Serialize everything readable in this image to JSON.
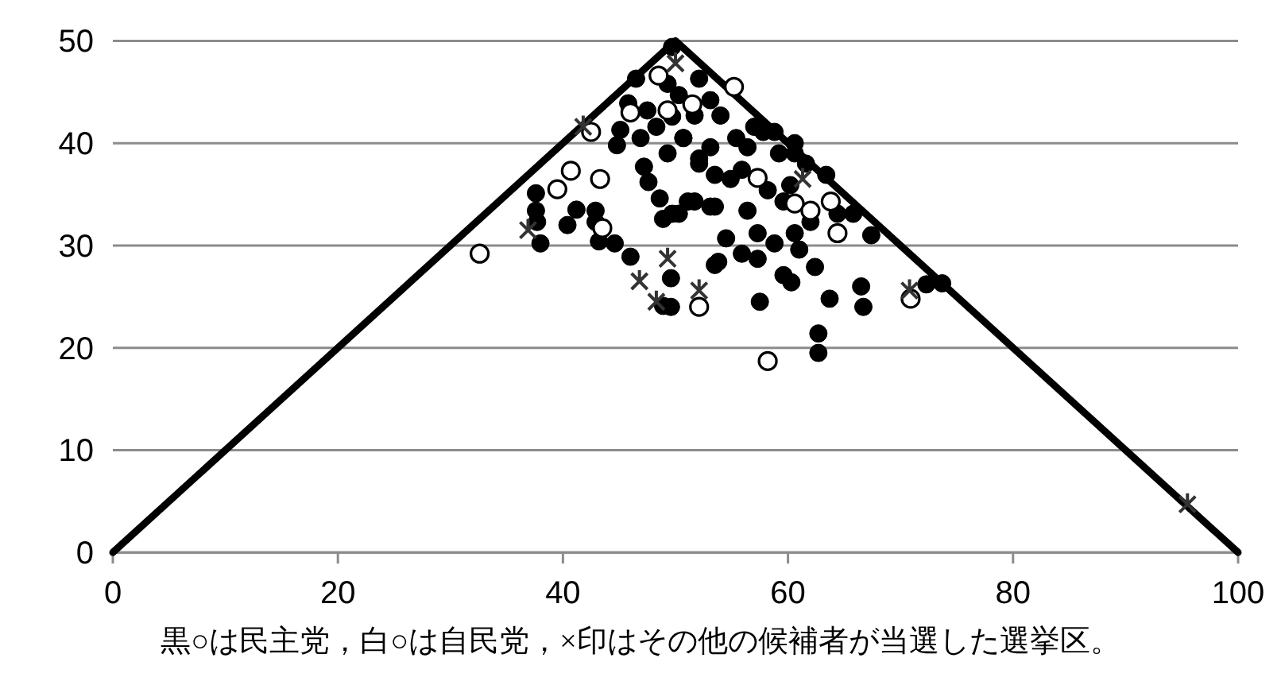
{
  "chart_data": {
    "type": "scatter",
    "xlim": [
      0,
      100
    ],
    "ylim": [
      0,
      50
    ],
    "xticks": [
      0,
      20,
      40,
      60,
      80,
      100
    ],
    "yticks": [
      0,
      10,
      20,
      30,
      40,
      50
    ],
    "grid": "y",
    "annotations": [
      "黒○は民主党，白○は自民党，×印はその他の候補者が当選した選挙区。"
    ],
    "series": [
      {
        "type": "line",
        "marker": "none",
        "color": "#000000",
        "x": [
          0,
          50,
          100
        ],
        "values": [
          0,
          50,
          0
        ]
      },
      {
        "marker": "circle",
        "color": "#000000",
        "x": [
          37.6,
          37.6,
          37.7,
          38,
          40.4,
          41.2,
          42.9,
          42.9,
          43.2,
          44.6,
          46,
          49.6,
          48.9,
          44.8,
          45.1,
          45.8,
          46.5,
          47.5,
          46.9,
          47.2,
          47.6,
          48.6,
          48.9,
          50.3,
          51.7,
          53.1,
          49.7,
          49.3,
          48.3,
          49.3,
          50.7,
          51.7,
          52.1,
          53.1,
          53.5,
          52.1,
          53.1,
          54,
          55.4,
          56.4,
          57.8,
          58.8,
          59.2,
          50.7,
          52.1,
          53.5,
          54.9,
          55.9,
          58.2,
          59.6,
          51.1,
          49.7,
          53.5,
          56.4,
          57.3,
          54.5,
          55.9,
          57.3,
          58.8,
          60.6,
          61,
          62.4,
          53.8,
          59.6,
          60.3,
          63.7,
          66.5,
          66.7,
          57.5,
          49.6,
          62.7,
          62.7,
          64.4,
          65.8,
          67.4,
          72.3,
          62,
          63.4,
          61.6,
          60.6,
          60.2,
          50.3,
          49.7,
          73.7,
          57,
          60.6
        ],
        "values": [
          35.1,
          33.4,
          32.3,
          30.2,
          32,
          33.5,
          33.4,
          32.3,
          30.4,
          30.2,
          28.9,
          26.8,
          24.1,
          39.8,
          41.3,
          43.9,
          46.3,
          43.2,
          40.5,
          37.7,
          36.2,
          34.6,
          32.6,
          33.1,
          34.3,
          33.8,
          49.4,
          45.8,
          41.6,
          39,
          40.5,
          42.7,
          38,
          39.6,
          28.1,
          46.3,
          44.2,
          42.7,
          40.5,
          39.6,
          41.1,
          41.1,
          39,
          40.5,
          38.5,
          36.9,
          36.5,
          37.4,
          35.4,
          34.3,
          34.3,
          33.1,
          33.8,
          33.4,
          31.2,
          30.7,
          29.2,
          28.7,
          30.2,
          31.2,
          29.6,
          27.9,
          28.4,
          27.1,
          26.4,
          24.8,
          26,
          24,
          24.5,
          24,
          21.4,
          19.5,
          33.1,
          33.1,
          31,
          26.2,
          32.3,
          36.9,
          38,
          39,
          35.9,
          44.7,
          42.6,
          26.3,
          41.6,
          40
        ]
      },
      {
        "marker": "circle",
        "color": "#ffffff",
        "x": [
          32.6,
          39.5,
          40.7,
          43.3,
          43.5,
          42.5,
          46,
          48.5,
          49.3,
          51.5,
          52.1,
          58.2,
          57.3,
          60.6,
          62,
          63.8,
          64.4,
          70.9,
          55.2
        ],
        "values": [
          29.2,
          35.5,
          37.3,
          36.5,
          31.7,
          41.1,
          43,
          46.6,
          43.2,
          43.8,
          24,
          18.7,
          36.6,
          34.1,
          33.4,
          34.3,
          31.2,
          24.8,
          45.5
        ]
      },
      {
        "marker": "cross",
        "color": "#333333",
        "x": [
          50,
          41.8,
          36.9,
          46.8,
          48.3,
          49.3,
          52.1,
          61.3,
          70.8,
          95.5
        ],
        "values": [
          47.8,
          41.6,
          31.5,
          26.5,
          24.5,
          28.7,
          25.6,
          36.5,
          25.6,
          4.7
        ]
      }
    ]
  }
}
